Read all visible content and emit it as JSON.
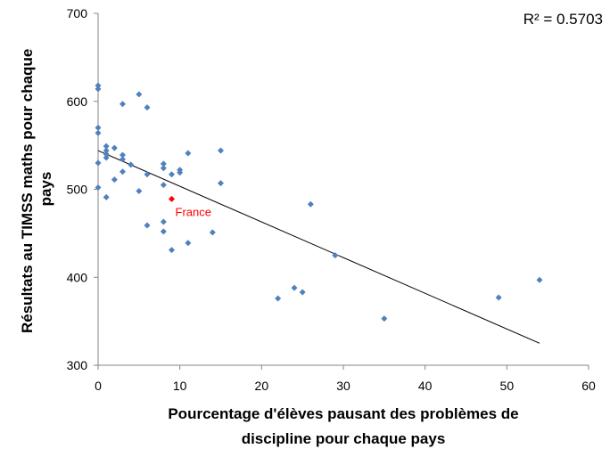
{
  "chart_data": {
    "type": "scatter",
    "title": "",
    "xlabel_lines": [
      "Pourcentage d'élèves pausant des problèmes de",
      "discipline pour chaque pays"
    ],
    "ylabel_lines": [
      "Résultats au TIMSS maths pour chaque",
      "pays"
    ],
    "xlim": [
      0,
      60
    ],
    "ylim": [
      300,
      700
    ],
    "xticks": [
      0,
      10,
      20,
      30,
      40,
      50,
      60
    ],
    "yticks": [
      300,
      400,
      500,
      600,
      700
    ],
    "grid": false,
    "legend": "none",
    "r_squared_label": "R² = 0.5703",
    "trendline": {
      "x": [
        0,
        54
      ],
      "y": [
        544,
        325
      ]
    },
    "colors": {
      "points": "#4f81bd",
      "highlight": "#ff0000",
      "trendline": "#000000"
    },
    "points": [
      {
        "x": 0,
        "y": 618
      },
      {
        "x": 0,
        "y": 614
      },
      {
        "x": 0,
        "y": 570
      },
      {
        "x": 0,
        "y": 564
      },
      {
        "x": 0,
        "y": 530
      },
      {
        "x": 0,
        "y": 502
      },
      {
        "x": 1,
        "y": 549
      },
      {
        "x": 1,
        "y": 544
      },
      {
        "x": 1,
        "y": 540
      },
      {
        "x": 1,
        "y": 536
      },
      {
        "x": 1,
        "y": 491
      },
      {
        "x": 2,
        "y": 547
      },
      {
        "x": 2,
        "y": 511
      },
      {
        "x": 3,
        "y": 597
      },
      {
        "x": 3,
        "y": 539
      },
      {
        "x": 3,
        "y": 534
      },
      {
        "x": 3,
        "y": 520
      },
      {
        "x": 4,
        "y": 528
      },
      {
        "x": 5,
        "y": 608
      },
      {
        "x": 5,
        "y": 498
      },
      {
        "x": 6,
        "y": 593
      },
      {
        "x": 6,
        "y": 517
      },
      {
        "x": 6,
        "y": 459
      },
      {
        "x": 8,
        "y": 529
      },
      {
        "x": 8,
        "y": 524
      },
      {
        "x": 8,
        "y": 505
      },
      {
        "x": 8,
        "y": 463
      },
      {
        "x": 8,
        "y": 452
      },
      {
        "x": 9,
        "y": 517
      },
      {
        "x": 9,
        "y": 431
      },
      {
        "x": 10,
        "y": 522
      },
      {
        "x": 10,
        "y": 519
      },
      {
        "x": 11,
        "y": 541
      },
      {
        "x": 11,
        "y": 439
      },
      {
        "x": 14,
        "y": 451
      },
      {
        "x": 15,
        "y": 544
      },
      {
        "x": 15,
        "y": 507
      },
      {
        "x": 22,
        "y": 376
      },
      {
        "x": 24,
        "y": 388
      },
      {
        "x": 25,
        "y": 383
      },
      {
        "x": 26,
        "y": 483
      },
      {
        "x": 29,
        "y": 425
      },
      {
        "x": 35,
        "y": 353
      },
      {
        "x": 49,
        "y": 377
      },
      {
        "x": 54,
        "y": 397
      }
    ],
    "highlight": {
      "x": 9,
      "y": 489,
      "label": "France"
    }
  }
}
